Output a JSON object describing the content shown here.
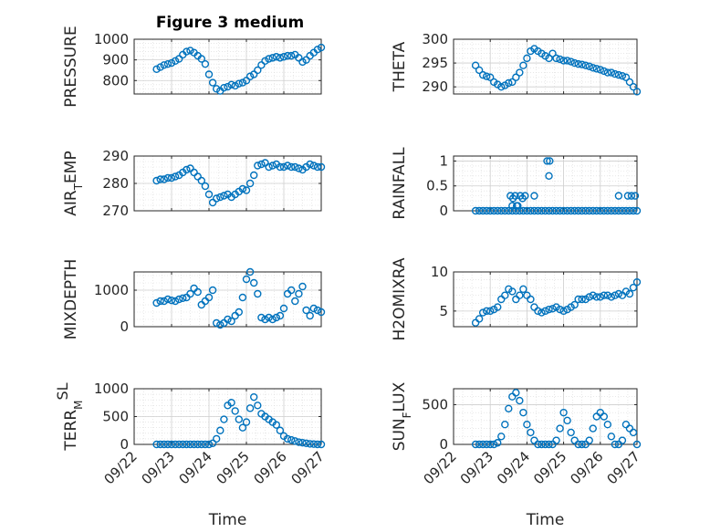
{
  "figure": {
    "title": "Figure 3 medium"
  },
  "chart_data": [
    {
      "id": "pressure",
      "type": "scatter",
      "title": "Figure 3 medium",
      "ylabel": "PRESSURE",
      "ylabel_sub": "",
      "ylabel_sup": "",
      "xlim": [
        0,
        5
      ],
      "ylim": [
        735,
        1000
      ],
      "yticks": [
        800,
        900,
        1000
      ],
      "xticks": [
        0,
        1,
        2,
        3,
        4,
        5
      ],
      "xticklabels": [],
      "x": [
        0.6,
        0.7,
        0.8,
        0.9,
        1.0,
        1.1,
        1.2,
        1.3,
        1.4,
        1.5,
        1.6,
        1.7,
        1.8,
        1.9,
        2.0,
        2.1,
        2.2,
        2.3,
        2.4,
        2.5,
        2.6,
        2.7,
        2.8,
        2.9,
        3.0,
        3.1,
        3.2,
        3.3,
        3.4,
        3.5,
        3.6,
        3.7,
        3.8,
        3.9,
        4.0,
        4.1,
        4.2,
        4.3,
        4.4,
        4.5,
        4.6,
        4.7,
        4.8,
        4.9,
        5.0
      ],
      "y": [
        855,
        865,
        875,
        880,
        885,
        895,
        905,
        925,
        940,
        945,
        935,
        920,
        905,
        880,
        830,
        790,
        760,
        750,
        765,
        770,
        780,
        775,
        785,
        790,
        800,
        820,
        830,
        850,
        875,
        895,
        905,
        910,
        915,
        910,
        915,
        920,
        920,
        925,
        910,
        890,
        900,
        920,
        935,
        950,
        960
      ]
    },
    {
      "id": "theta",
      "type": "scatter",
      "ylabel": "THETA",
      "ylabel_sub": "",
      "ylabel_sup": "",
      "xlim": [
        0,
        5
      ],
      "ylim": [
        288.5,
        300
      ],
      "yticks": [
        290,
        295,
        300
      ],
      "xticks": [
        0,
        1,
        2,
        3,
        4,
        5
      ],
      "xticklabels": [],
      "x": [
        0.6,
        0.7,
        0.8,
        0.9,
        1.0,
        1.1,
        1.2,
        1.3,
        1.4,
        1.5,
        1.6,
        1.7,
        1.8,
        1.9,
        2.0,
        2.1,
        2.2,
        2.3,
        2.4,
        2.5,
        2.6,
        2.7,
        2.8,
        2.9,
        3.0,
        3.1,
        3.2,
        3.3,
        3.4,
        3.5,
        3.6,
        3.7,
        3.8,
        3.9,
        4.0,
        4.1,
        4.2,
        4.3,
        4.4,
        4.5,
        4.6,
        4.7,
        4.8,
        4.9,
        5.0
      ],
      "y": [
        294.5,
        293.5,
        292.5,
        292.2,
        292,
        291,
        290.5,
        290,
        290.3,
        290.8,
        291,
        292,
        293,
        294.5,
        296,
        297.5,
        298,
        297.5,
        297,
        296.5,
        296,
        297,
        296,
        295.8,
        295.5,
        295.5,
        295.3,
        295,
        294.8,
        294.7,
        294.5,
        294.3,
        294,
        293.8,
        293.6,
        293.3,
        293,
        293,
        292.7,
        292.5,
        292.3,
        292,
        291,
        290,
        289
      ]
    },
    {
      "id": "air_temp",
      "type": "scatter",
      "ylabel": "AIR",
      "ylabel_sub": "T",
      "ylabel_sup": "",
      "ylabel_tail": "EMP",
      "xlim": [
        0,
        5
      ],
      "ylim": [
        270,
        290
      ],
      "yticks": [
        270,
        280,
        290
      ],
      "xticks": [
        0,
        1,
        2,
        3,
        4,
        5
      ],
      "xticklabels": [],
      "x": [
        0.6,
        0.7,
        0.8,
        0.9,
        1.0,
        1.1,
        1.2,
        1.3,
        1.4,
        1.5,
        1.6,
        1.7,
        1.8,
        1.9,
        2.0,
        2.1,
        2.2,
        2.3,
        2.4,
        2.5,
        2.6,
        2.7,
        2.8,
        2.9,
        3.0,
        3.1,
        3.2,
        3.3,
        3.4,
        3.5,
        3.6,
        3.7,
        3.8,
        3.9,
        4.0,
        4.1,
        4.2,
        4.3,
        4.4,
        4.5,
        4.6,
        4.7,
        4.8,
        4.9,
        5.0
      ],
      "y": [
        281,
        281.5,
        281.5,
        282,
        282,
        282.5,
        283,
        284,
        285,
        285.5,
        284,
        282.5,
        281,
        279,
        276,
        273,
        274.5,
        275,
        275.5,
        276,
        275,
        276,
        277,
        278,
        277.5,
        280,
        283,
        286.5,
        287,
        287.5,
        286,
        286.5,
        287,
        286,
        286,
        286.5,
        286,
        286,
        285.5,
        285,
        286,
        287,
        286.5,
        286,
        286
      ]
    },
    {
      "id": "rainfall",
      "type": "scatter",
      "ylabel": "RAINFALL",
      "ylabel_sub": "",
      "ylabel_sup": "",
      "xlim": [
        0,
        5
      ],
      "ylim": [
        0,
        1.1
      ],
      "yticks": [
        0,
        0.5,
        1
      ],
      "xticks": [
        0,
        1,
        2,
        3,
        4,
        5
      ],
      "xticklabels": [],
      "x": [
        0.6,
        0.7,
        0.8,
        0.9,
        1.0,
        1.1,
        1.2,
        1.3,
        1.4,
        1.5,
        1.6,
        1.7,
        1.8,
        1.9,
        2.0,
        2.1,
        2.2,
        2.3,
        2.4,
        2.5,
        2.6,
        2.7,
        2.8,
        2.9,
        3.0,
        3.1,
        3.2,
        3.3,
        3.4,
        3.5,
        3.6,
        3.7,
        3.8,
        3.9,
        4.0,
        4.1,
        4.2,
        4.3,
        4.4,
        4.5,
        4.6,
        4.7,
        4.8,
        4.9,
        5.0,
        1.55,
        1.62,
        1.68,
        1.75,
        1.82,
        1.88,
        1.95,
        2.55,
        2.62,
        2.2,
        2.6,
        4.5,
        4.75,
        4.85,
        4.95,
        1.72,
        1.6
      ],
      "y": [
        0,
        0,
        0,
        0,
        0,
        0,
        0,
        0,
        0,
        0,
        0,
        0,
        0,
        0,
        0,
        0,
        0,
        0,
        0,
        0,
        0,
        0,
        0,
        0,
        0,
        0,
        0,
        0,
        0,
        0,
        0,
        0,
        0,
        0,
        0,
        0,
        0,
        0,
        0,
        0,
        0,
        0,
        0,
        0,
        0,
        0.3,
        0.25,
        0.3,
        0.1,
        0.3,
        0.25,
        0.3,
        1.0,
        1.0,
        0.3,
        0.7,
        0.3,
        0.3,
        0.3,
        0.3,
        0.1,
        0.1
      ]
    },
    {
      "id": "mixdepth",
      "type": "scatter",
      "ylabel": "MIXDEPTH",
      "ylabel_sub": "",
      "ylabel_sup": "",
      "xlim": [
        0,
        5
      ],
      "ylim": [
        0,
        1500
      ],
      "yticks": [
        0,
        1000
      ],
      "xticks": [
        0,
        1,
        2,
        3,
        4,
        5
      ],
      "xticklabels": [],
      "x": [
        0.6,
        0.7,
        0.8,
        0.9,
        1.0,
        1.1,
        1.2,
        1.3,
        1.4,
        1.5,
        1.6,
        1.7,
        1.8,
        1.9,
        2.0,
        2.1,
        2.2,
        2.3,
        2.4,
        2.5,
        2.6,
        2.7,
        2.8,
        2.9,
        3.0,
        3.1,
        3.2,
        3.3,
        3.4,
        3.5,
        3.6,
        3.7,
        3.8,
        3.9,
        4.0,
        4.1,
        4.2,
        4.3,
        4.4,
        4.5,
        4.6,
        4.7,
        4.8,
        4.9,
        5.0
      ],
      "y": [
        650,
        700,
        700,
        750,
        720,
        700,
        750,
        780,
        800,
        900,
        1050,
        950,
        600,
        700,
        800,
        1000,
        100,
        50,
        100,
        200,
        150,
        300,
        400,
        800,
        1300,
        1500,
        1200,
        900,
        250,
        200,
        250,
        200,
        250,
        300,
        500,
        900,
        1000,
        700,
        900,
        1100,
        450,
        300,
        500,
        450,
        400
      ]
    },
    {
      "id": "h2omixra",
      "type": "scatter",
      "ylabel": "H2OMIXRA",
      "ylabel_sub": "",
      "ylabel_sup": "",
      "xlim": [
        0,
        5
      ],
      "ylim": [
        3,
        10
      ],
      "yticks": [
        5,
        10
      ],
      "xticks": [
        0,
        1,
        2,
        3,
        4,
        5
      ],
      "xticklabels": [],
      "x": [
        0.6,
        0.7,
        0.8,
        0.9,
        1.0,
        1.1,
        1.2,
        1.3,
        1.4,
        1.5,
        1.6,
        1.7,
        1.8,
        1.9,
        2.0,
        2.1,
        2.2,
        2.3,
        2.4,
        2.5,
        2.6,
        2.7,
        2.8,
        2.9,
        3.0,
        3.1,
        3.2,
        3.3,
        3.4,
        3.5,
        3.6,
        3.7,
        3.8,
        3.9,
        4.0,
        4.1,
        4.2,
        4.3,
        4.4,
        4.5,
        4.6,
        4.7,
        4.8,
        4.9,
        5.0
      ],
      "y": [
        3.5,
        4.0,
        4.8,
        5.0,
        5.0,
        5.2,
        5.5,
        6.5,
        7.0,
        7.8,
        7.5,
        6.5,
        7.0,
        7.8,
        7.0,
        6.5,
        5.5,
        5.0,
        4.8,
        5.0,
        5.2,
        5.3,
        5.5,
        5.2,
        5.0,
        5.2,
        5.5,
        5.8,
        6.5,
        6.5,
        6.5,
        6.8,
        7.0,
        6.8,
        6.8,
        7.0,
        7.0,
        6.8,
        7.0,
        7.2,
        7.0,
        7.5,
        7.2,
        8.0,
        8.7
      ]
    },
    {
      "id": "terr_msl",
      "type": "scatter",
      "ylabel": "TERR",
      "ylabel_sub": "M",
      "ylabel_sup": "SL",
      "ylabel_tail": "",
      "xlim": [
        0,
        5
      ],
      "ylim": [
        0,
        1000
      ],
      "yticks": [
        0,
        500,
        1000
      ],
      "xticks": [
        0,
        1,
        2,
        3,
        4,
        5
      ],
      "xticklabels": [
        "09/22",
        "09/23",
        "09/24",
        "09/25",
        "09/26",
        "09/27"
      ],
      "xlabel": "Time",
      "x": [
        0.6,
        0.7,
        0.8,
        0.9,
        1.0,
        1.1,
        1.2,
        1.3,
        1.4,
        1.5,
        1.6,
        1.7,
        1.8,
        1.9,
        2.0,
        2.1,
        2.2,
        2.3,
        2.4,
        2.5,
        2.6,
        2.7,
        2.8,
        2.9,
        3.0,
        3.1,
        3.2,
        3.3,
        3.4,
        3.5,
        3.6,
        3.7,
        3.8,
        3.9,
        4.0,
        4.1,
        4.2,
        4.3,
        4.4,
        4.5,
        4.6,
        4.7,
        4.8,
        4.9,
        5.0
      ],
      "y": [
        0,
        0,
        0,
        0,
        0,
        0,
        0,
        0,
        0,
        0,
        0,
        0,
        0,
        0,
        0,
        20,
        100,
        250,
        450,
        700,
        750,
        600,
        450,
        300,
        400,
        650,
        850,
        700,
        550,
        500,
        450,
        400,
        350,
        250,
        150,
        100,
        80,
        60,
        40,
        30,
        20,
        10,
        5,
        0,
        0
      ]
    },
    {
      "id": "sun_flux",
      "type": "scatter",
      "ylabel": "SUN",
      "ylabel_sub": "F",
      "ylabel_sup": "",
      "ylabel_tail": "LUX",
      "xlim": [
        0,
        5
      ],
      "ylim": [
        0,
        700
      ],
      "yticks": [
        0,
        500
      ],
      "xticks": [
        0,
        1,
        2,
        3,
        4,
        5
      ],
      "xticklabels": [
        "09/22",
        "09/23",
        "09/24",
        "09/25",
        "09/26",
        "09/27"
      ],
      "xlabel": "Time",
      "x": [
        0.6,
        0.7,
        0.8,
        0.9,
        1.0,
        1.1,
        1.2,
        1.3,
        1.4,
        1.5,
        1.6,
        1.7,
        1.8,
        1.9,
        2.0,
        2.1,
        2.2,
        2.3,
        2.4,
        2.5,
        2.6,
        2.7,
        2.8,
        2.9,
        3.0,
        3.1,
        3.2,
        3.3,
        3.4,
        3.5,
        3.6,
        3.7,
        3.8,
        3.9,
        4.0,
        4.1,
        4.2,
        4.3,
        4.4,
        4.5,
        4.6,
        4.7,
        4.8,
        4.9,
        5.0
      ],
      "y": [
        0,
        0,
        0,
        0,
        0,
        0,
        20,
        100,
        250,
        450,
        600,
        650,
        550,
        400,
        250,
        150,
        50,
        0,
        0,
        0,
        0,
        0,
        50,
        200,
        400,
        300,
        150,
        50,
        0,
        0,
        0,
        50,
        200,
        350,
        400,
        350,
        250,
        100,
        0,
        0,
        50,
        250,
        200,
        150,
        0
      ]
    }
  ],
  "colors": {
    "marker": "#0072bd",
    "axis": "#262626",
    "grid": "#d9d9d9"
  }
}
